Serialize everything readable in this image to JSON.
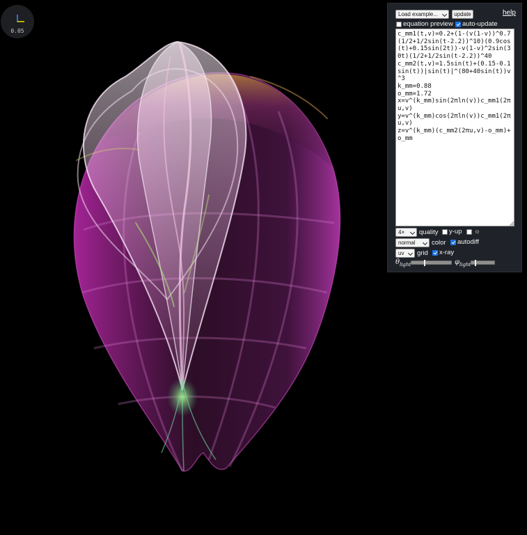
{
  "gizmo": {
    "scale_label": "0.05"
  },
  "panel": {
    "load_examples_label": "Load example...",
    "update_label": "update",
    "help_label": "help",
    "equation_preview": {
      "label": "equation preview",
      "checked": false
    },
    "auto_update": {
      "label": "auto-update",
      "checked": true
    },
    "equation_lines": [
      "c_mm1(t,v)=0.2+(1-(v(1-v))^0.7(1/2+1/2sin(t-2.2))^10)(0.9cos(t)+0.15sin(2t))-v(1-v)^2sin(30t)(1/2+1/2sin(t-2.2))^40",
      "c_mm2(t,v)=1.5sin(t)+(0.15-0.1sin(t))|sin(t)|^(80+40sin(t))v^3",
      "k_mm=0.88",
      "o_mm=1.72",
      "x=v^(k_mm)sin(2πln(v))c_mm1(2πu,v)",
      "y=v^(k_mm)cos(2πln(v))c_mm1(2πu,v)",
      "z=v^(k_mm)(c_mm2(2πu,v)-o_mm)+o_mm"
    ],
    "quality": {
      "selected": "4×",
      "label": "quality"
    },
    "y_up": {
      "label": "y-up",
      "checked": false
    },
    "sun_toggle": {
      "label": "☼",
      "checked": false
    },
    "color": {
      "selected": "normal",
      "label": "color"
    },
    "autodiff": {
      "label": "autodiff",
      "checked": true
    },
    "grid": {
      "selected": "uv",
      "label": "grid"
    },
    "xray": {
      "label": "x-ray",
      "checked": true
    },
    "theta_light": {
      "symbol": "θ",
      "sub": "light",
      "value": 0.33
    },
    "phi_light": {
      "symbol": "φ",
      "sub": "light",
      "value": 0.15
    }
  },
  "colors": {
    "background": "#000000",
    "panel_bg": "#1f2329",
    "checkbox_accent": "#1a73e8",
    "surface_outer": "#c040b0",
    "surface_inner": "#f0e0ee",
    "surface_rim": "#d0a060",
    "surface_highlight": "#9adf60"
  }
}
